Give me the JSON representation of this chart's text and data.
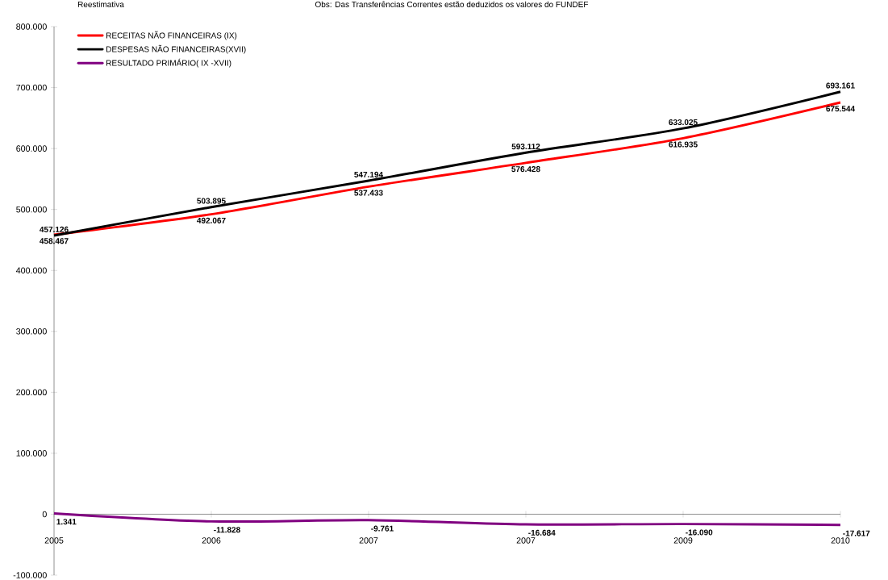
{
  "chart_data": {
    "type": "line",
    "annotations": [
      "Reestimativa",
      "Obs: Das Transferências Correntes estão deduzidos os valores do FUNDEF"
    ],
    "categories": [
      "2005",
      "2006",
      "2007",
      "2007",
      "2009",
      "2010"
    ],
    "series": [
      {
        "name": "RECEITAS NÃO FINANCEIRAS (IX)",
        "color": "#ff0000",
        "values": [
          458467,
          492067,
          537433,
          576428,
          616935,
          675544
        ],
        "value_labels": [
          "458.467",
          "492.067",
          "537.433",
          "576.428",
          "616.935",
          "675.544"
        ]
      },
      {
        "name": "DESPESAS NÃO FINANCEIRAS(XVII)",
        "color": "#000000",
        "values": [
          457126,
          503895,
          547194,
          593112,
          633025,
          693161
        ],
        "value_labels": [
          "457.126",
          "503.895",
          "547.194",
          "593.112",
          "633.025",
          "693.161"
        ]
      },
      {
        "name": "RESULTADO PRIMÁRIO( IX -XVII)",
        "color": "#800080",
        "values": [
          1341,
          -11828,
          -9761,
          -16684,
          -16090,
          -17617
        ],
        "value_labels": [
          "1.341",
          "-11.828",
          "-9.761",
          "-16.684",
          "-16.090",
          "-17.617"
        ]
      }
    ],
    "ylim": [
      -100000,
      800000
    ],
    "yticks": [
      {
        "value": -100000,
        "label": "-100.000"
      },
      0,
      {
        "value": 100000,
        "label": "100.000"
      },
      {
        "value": 200000,
        "label": "200.000"
      },
      {
        "value": 300000,
        "label": "300.000"
      },
      {
        "value": 400000,
        "label": "400.000"
      },
      {
        "value": 500000,
        "label": "500.000"
      },
      {
        "value": 600000,
        "label": "600.000"
      },
      {
        "value": 700000,
        "label": "700.000"
      },
      {
        "value": 800000,
        "label": "800.000"
      }
    ],
    "legend": "top left"
  }
}
